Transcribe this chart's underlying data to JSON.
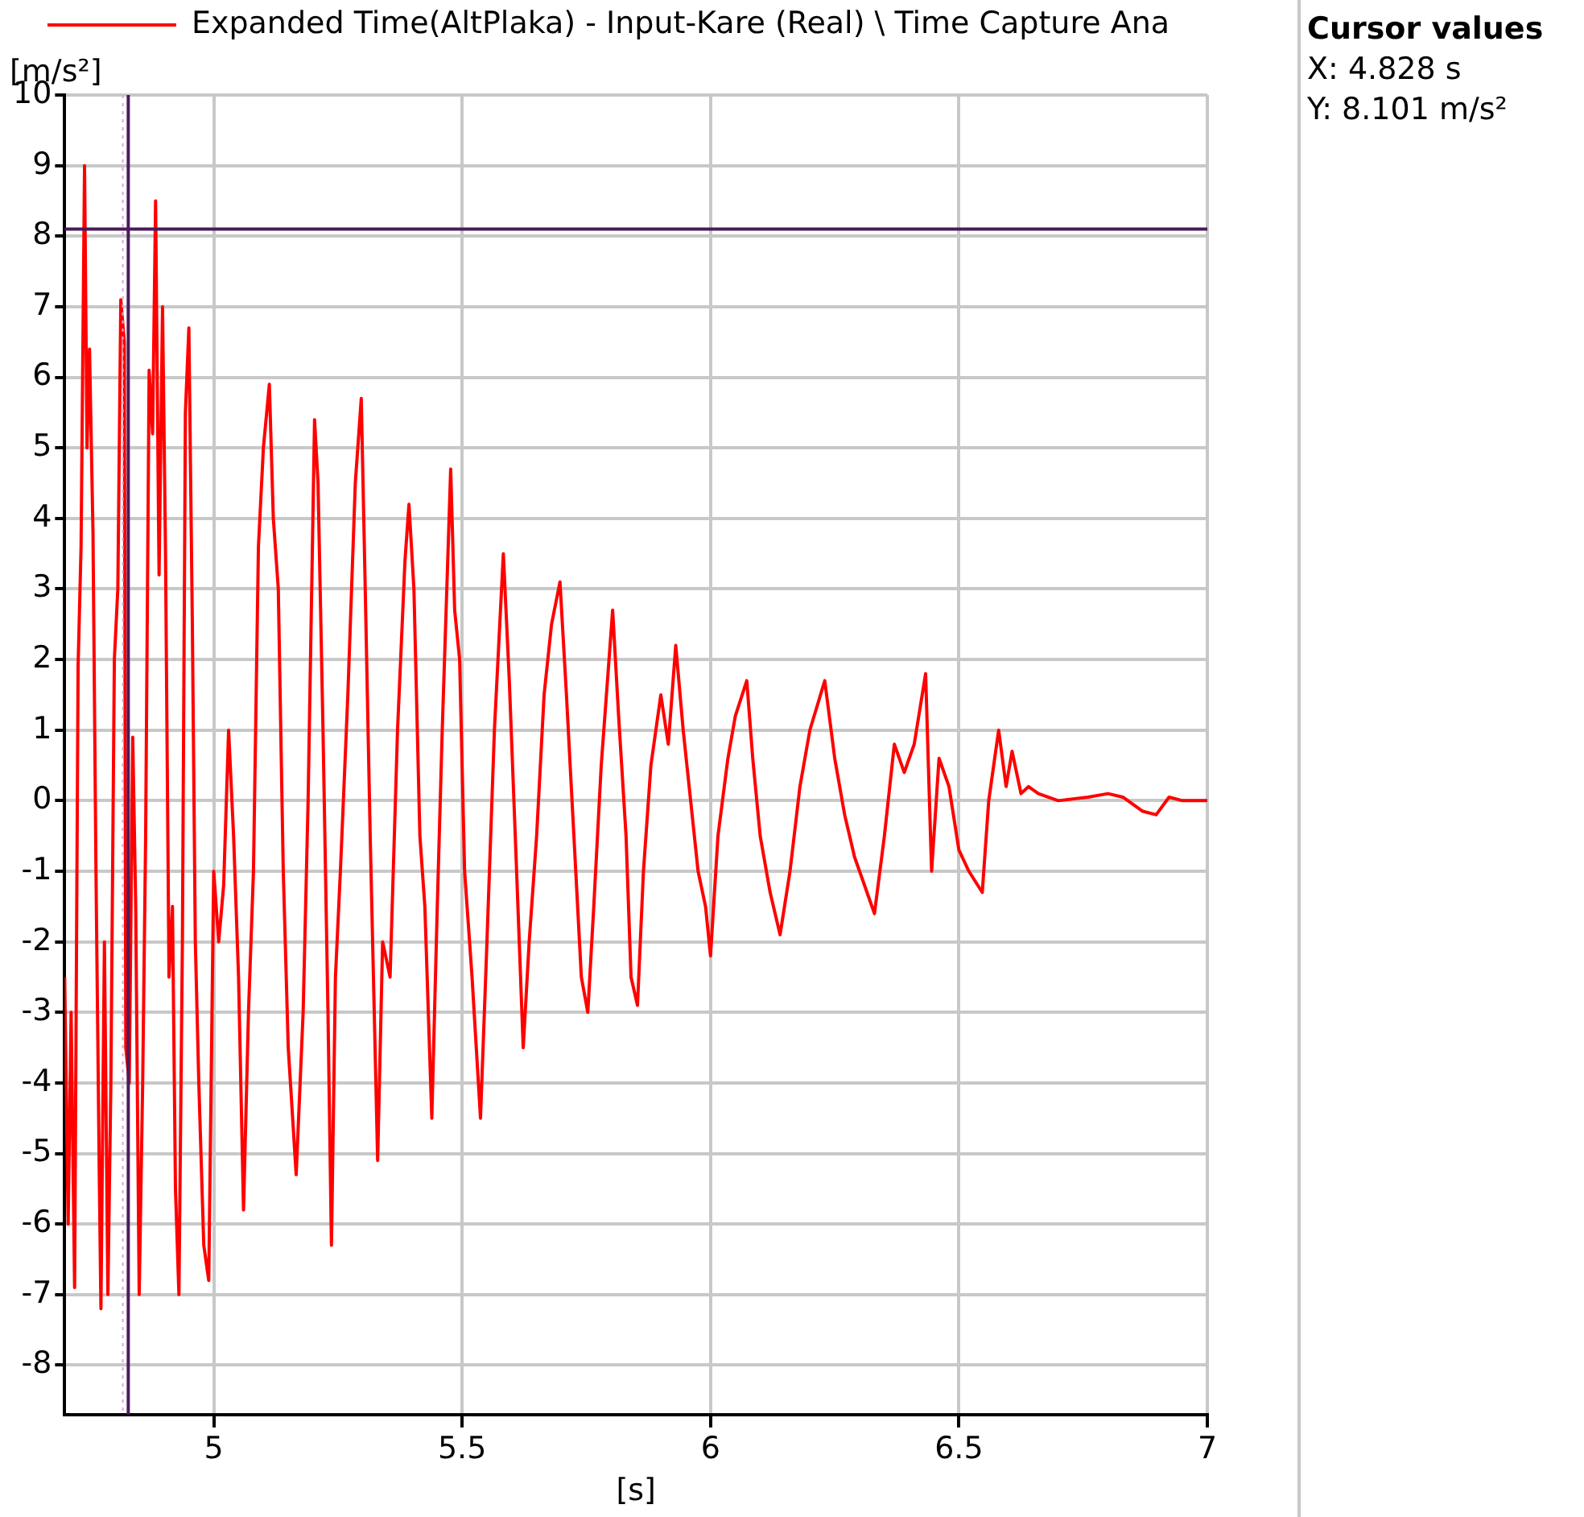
{
  "chart_data": {
    "type": "line",
    "xlabel": "[s]",
    "ylabel": "[m/s²]",
    "annotations": [
      "Cursor values",
      "X: 4.828 s",
      "Y: 8.101 m/s²"
    ],
    "xlim": [
      4.7,
      7
    ],
    "xticks": [
      5,
      5.5,
      6,
      6.5,
      7
    ],
    "ylim": [
      -8.7,
      10
    ],
    "yticks": [
      -8,
      -7,
      -6,
      -5,
      -4,
      -3,
      -2,
      -1,
      0,
      1,
      2,
      3,
      4,
      5,
      6,
      7,
      8,
      9,
      10
    ],
    "grid": true,
    "legend": "top",
    "marker": "none",
    "line_style": "solid",
    "ref_lines": [
      {
        "axis": "x",
        "value": 4.817,
        "color": "#d9a6d9",
        "line_style": "dotted"
      },
      {
        "axis": "x",
        "value": 4.828,
        "color": "#4b1a5a",
        "line_style": "solid"
      },
      {
        "axis": "y",
        "value": 8.101,
        "color": "#4b1a5a",
        "line_style": "solid"
      }
    ],
    "series": [
      {
        "name": "Expanded Time(AltPlaka) - Input-Kare (Real) \\ Time Capture Ana",
        "color": "#ff0000",
        "x": [
          4.7,
          4.707,
          4.713,
          4.72,
          4.727,
          4.733,
          4.74,
          4.745,
          4.75,
          4.757,
          4.763,
          4.77,
          4.773,
          4.78,
          4.787,
          4.793,
          4.8,
          4.807,
          4.813,
          4.82,
          4.823,
          4.83,
          4.837,
          4.843,
          4.85,
          4.857,
          4.863,
          4.87,
          4.877,
          4.883,
          4.89,
          4.897,
          4.903,
          4.91,
          4.917,
          4.923,
          4.93,
          4.937,
          4.943,
          4.95,
          4.957,
          4.963,
          4.97,
          4.98,
          4.99,
          5.0,
          5.01,
          5.02,
          5.03,
          5.04,
          5.05,
          5.06,
          5.07,
          5.08,
          5.09,
          5.1,
          5.112,
          5.12,
          5.13,
          5.14,
          5.15,
          5.166,
          5.18,
          5.19,
          5.203,
          5.21,
          5.22,
          5.23,
          5.237,
          5.245,
          5.255,
          5.27,
          5.285,
          5.297,
          5.305,
          5.315,
          5.33,
          5.34,
          5.355,
          5.37,
          5.385,
          5.393,
          5.403,
          5.415,
          5.425,
          5.439,
          5.45,
          5.46,
          5.477,
          5.485,
          5.495,
          5.505,
          5.52,
          5.537,
          5.55,
          5.565,
          5.583,
          5.595,
          5.607,
          5.623,
          5.635,
          5.65,
          5.665,
          5.68,
          5.697,
          5.71,
          5.725,
          5.74,
          5.753,
          5.765,
          5.78,
          5.803,
          5.815,
          5.83,
          5.84,
          5.853,
          5.865,
          5.88,
          5.9,
          5.915,
          5.93,
          5.945,
          5.96,
          5.975,
          5.99,
          6.0,
          6.015,
          6.035,
          6.05,
          6.073,
          6.085,
          6.1,
          6.12,
          6.14,
          6.16,
          6.18,
          6.2,
          6.23,
          6.25,
          6.27,
          6.29,
          6.31,
          6.33,
          6.35,
          6.37,
          6.39,
          6.41,
          6.433,
          6.445,
          6.46,
          6.48,
          6.5,
          6.52,
          6.547,
          6.56,
          6.58,
          6.595,
          6.607,
          6.625,
          6.64,
          6.66,
          6.7,
          6.76,
          6.8,
          6.83,
          6.87,
          6.897,
          6.923,
          6.95,
          7.0
        ],
        "values": [
          -2.5,
          -6.0,
          -3.0,
          -6.9,
          1.9,
          3.6,
          9.0,
          5.0,
          6.4,
          3.8,
          -1.0,
          -5.5,
          -7.2,
          -2.0,
          -7.0,
          -4.0,
          2.0,
          3.0,
          7.1,
          6.5,
          -3.5,
          -4.0,
          0.9,
          -1.5,
          -7.0,
          -4.0,
          -0.5,
          6.1,
          5.2,
          8.5,
          3.2,
          7.0,
          3.5,
          -2.5,
          -1.5,
          -5.5,
          -7.0,
          -2.0,
          5.5,
          6.7,
          2.5,
          -2.0,
          -4.0,
          -6.3,
          -6.8,
          -1.0,
          -2.0,
          -1.2,
          1.0,
          -0.5,
          -2.5,
          -5.8,
          -3.0,
          -1.0,
          3.6,
          5.0,
          5.9,
          4.0,
          3.0,
          -1.0,
          -3.5,
          -5.3,
          -3.0,
          0.0,
          5.4,
          4.5,
          1.0,
          -3.0,
          -6.3,
          -2.5,
          -1.0,
          1.5,
          4.5,
          5.7,
          3.0,
          -0.5,
          -5.1,
          -2.0,
          -2.5,
          1.0,
          3.4,
          4.2,
          3.0,
          -0.5,
          -1.5,
          -4.5,
          -1.5,
          1.0,
          4.7,
          2.7,
          2.0,
          -1.0,
          -2.5,
          -4.5,
          -2.0,
          1.0,
          3.5,
          1.7,
          -0.5,
          -3.5,
          -2.0,
          -0.5,
          1.5,
          2.5,
          3.1,
          1.5,
          -0.5,
          -2.5,
          -3.0,
          -1.5,
          0.5,
          2.7,
          1.2,
          -0.5,
          -2.5,
          -2.9,
          -1.0,
          0.5,
          1.5,
          0.8,
          2.2,
          1.0,
          0.0,
          -1.0,
          -1.5,
          -2.2,
          -0.5,
          0.6,
          1.2,
          1.7,
          0.6,
          -0.5,
          -1.3,
          -1.9,
          -1.0,
          0.2,
          1.0,
          1.7,
          0.6,
          -0.2,
          -0.8,
          -1.2,
          -1.6,
          -0.5,
          0.8,
          0.4,
          0.8,
          1.8,
          -1.0,
          0.6,
          0.2,
          -0.7,
          -1.0,
          -1.3,
          0.0,
          1.0,
          0.2,
          0.7,
          0.1,
          0.2,
          0.1,
          0.0,
          0.05,
          0.1,
          0.05,
          -0.15,
          -0.2,
          0.05,
          0.0,
          0.0
        ]
      }
    ]
  }
}
